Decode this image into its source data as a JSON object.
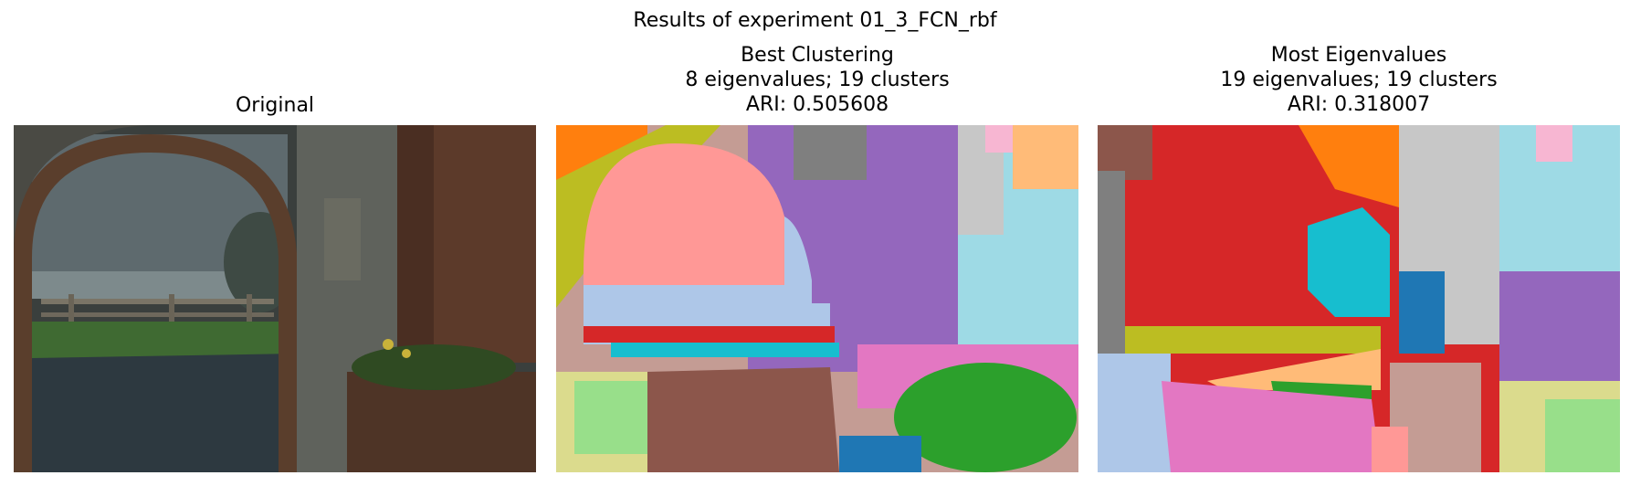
{
  "figure": {
    "suptitle": "Results of experiment 01_3_FCN_rbf"
  },
  "panels": [
    {
      "title_lines": [
        "Original"
      ]
    },
    {
      "title_lines": [
        "Best Clustering",
        "8 eigenvalues; 19 clusters",
        "ARI: 0.505608"
      ]
    },
    {
      "title_lines": [
        "Most Eigenvalues",
        "19 eigenvalues; 19 clusters",
        "ARI: 0.318007"
      ]
    }
  ]
}
